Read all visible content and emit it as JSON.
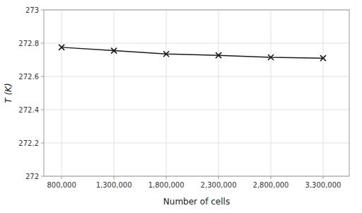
{
  "chart_data": {
    "type": "line",
    "xlabel": "Number of cells",
    "ylabel": "T (K)",
    "x": [
      800000,
      1300000,
      1800000,
      2300000,
      2800000,
      3300000
    ],
    "values": [
      272.775,
      272.755,
      272.735,
      272.727,
      272.715,
      272.71
    ],
    "color": "#1a1a1a",
    "marker": "x",
    "xlim": [
      630000,
      3550000
    ],
    "ylim": [
      272.0,
      273.0
    ],
    "xticks": [
      {
        "value": 800000,
        "label": "800,000"
      },
      {
        "value": 1300000,
        "label": "1,300,000"
      },
      {
        "value": 1800000,
        "label": "1,800,000"
      },
      {
        "value": 2300000,
        "label": "2,300,000"
      },
      {
        "value": 2800000,
        "label": "2,800,000"
      },
      {
        "value": 3300000,
        "label": "3,300,000"
      }
    ],
    "yticks": [
      272,
      272.2,
      272.4,
      272.6,
      272.8,
      273
    ],
    "grid": true
  }
}
